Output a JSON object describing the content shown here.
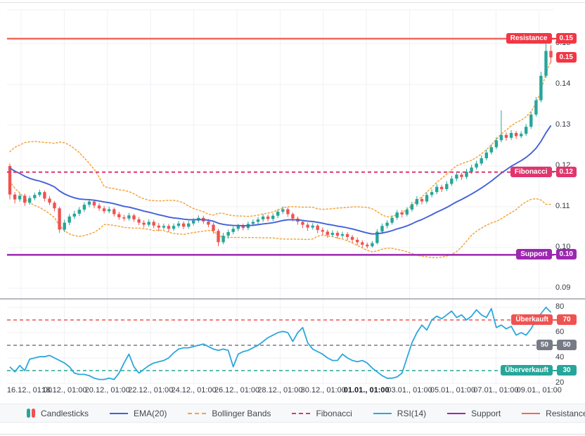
{
  "widget": {
    "type": "candlestick-price-chart-with-rsi"
  },
  "chart_data": {
    "type": "candlestick",
    "x_ticks": [
      "16.12., 01:00",
      "18.12., 01:00",
      "20.12., 01:00",
      "22.12., 01:00",
      "24.12., 01:00",
      "26.12., 01:00",
      "28.12., 01:00",
      "30.12., 01:00",
      "01.01., 01:00",
      "03.01., 01:00",
      "05.01., 01:00",
      "07.01., 01:00",
      "09.01., 01:00"
    ],
    "x_bold_tick": "01.01., 01:00",
    "price_axis": {
      "labels": [
        "0.15",
        "0.14",
        "0.13",
        "0.12",
        "0.11",
        "0.10",
        "0.09"
      ],
      "values": [
        0.15,
        0.14,
        0.13,
        0.12,
        0.11,
        0.1,
        0.09
      ]
    },
    "rsi_axis": {
      "labels": [
        "80",
        "60",
        "40",
        "20"
      ],
      "values": [
        80,
        60,
        40,
        20
      ]
    },
    "candles": [
      [
        0.12,
        0.1206,
        0.1118,
        0.113
      ],
      [
        0.113,
        0.1136,
        0.1108,
        0.1118
      ],
      [
        0.1118,
        0.1133,
        0.1112,
        0.1127
      ],
      [
        0.1127,
        0.1132,
        0.1102,
        0.111
      ],
      [
        0.111,
        0.1127,
        0.1105,
        0.1121
      ],
      [
        0.1121,
        0.1135,
        0.1116,
        0.1129
      ],
      [
        0.1129,
        0.1142,
        0.1124,
        0.1136
      ],
      [
        0.1136,
        0.114,
        0.1113,
        0.112
      ],
      [
        0.112,
        0.1126,
        0.1104,
        0.111
      ],
      [
        0.111,
        0.1114,
        0.1089,
        0.1096
      ],
      [
        0.1096,
        0.11,
        0.1036,
        0.1044
      ],
      [
        0.1044,
        0.1068,
        0.1038,
        0.1061
      ],
      [
        0.1061,
        0.1082,
        0.1055,
        0.1076
      ],
      [
        0.1076,
        0.109,
        0.107,
        0.1083
      ],
      [
        0.1083,
        0.1099,
        0.1077,
        0.1093
      ],
      [
        0.1093,
        0.1111,
        0.1087,
        0.1105
      ],
      [
        0.1105,
        0.1119,
        0.1099,
        0.1113
      ],
      [
        0.1113,
        0.1118,
        0.1096,
        0.1103
      ],
      [
        0.1103,
        0.1109,
        0.109,
        0.1096
      ],
      [
        0.1096,
        0.1102,
        0.1083,
        0.1089
      ],
      [
        0.1089,
        0.11,
        0.1084,
        0.1094
      ],
      [
        0.1094,
        0.1098,
        0.1076,
        0.1082
      ],
      [
        0.1082,
        0.1088,
        0.1068,
        0.1074
      ],
      [
        0.1074,
        0.108,
        0.1065,
        0.1071
      ],
      [
        0.1071,
        0.1085,
        0.1066,
        0.1079
      ],
      [
        0.1079,
        0.1083,
        0.1063,
        0.1069
      ],
      [
        0.1069,
        0.1075,
        0.1055,
        0.1061
      ],
      [
        0.1061,
        0.1067,
        0.1049,
        0.1056
      ],
      [
        0.1056,
        0.1069,
        0.1051,
        0.1063
      ],
      [
        0.1063,
        0.1068,
        0.1047,
        0.1054
      ],
      [
        0.1054,
        0.106,
        0.104,
        0.1049
      ],
      [
        0.1049,
        0.1059,
        0.1044,
        0.1053
      ],
      [
        0.1053,
        0.1058,
        0.1038,
        0.1046
      ],
      [
        0.1046,
        0.1059,
        0.1041,
        0.1053
      ],
      [
        0.1053,
        0.1065,
        0.1048,
        0.1059
      ],
      [
        0.1059,
        0.1064,
        0.1045,
        0.1051
      ],
      [
        0.1051,
        0.1066,
        0.1046,
        0.1059
      ],
      [
        0.1059,
        0.1072,
        0.1054,
        0.1066
      ],
      [
        0.1066,
        0.1079,
        0.1061,
        0.1073
      ],
      [
        0.1073,
        0.1078,
        0.1058,
        0.1064
      ],
      [
        0.1064,
        0.107,
        0.105,
        0.1056
      ],
      [
        0.1056,
        0.1061,
        0.1034,
        0.1041
      ],
      [
        0.1041,
        0.1046,
        0.1003,
        0.1013
      ],
      [
        0.1013,
        0.1036,
        0.1008,
        0.1029
      ],
      [
        0.1029,
        0.1044,
        0.1022,
        0.1038
      ],
      [
        0.1038,
        0.1052,
        0.1032,
        0.1046
      ],
      [
        0.1046,
        0.1058,
        0.104,
        0.1053
      ],
      [
        0.1053,
        0.1059,
        0.1042,
        0.1048
      ],
      [
        0.1048,
        0.1064,
        0.1043,
        0.1058
      ],
      [
        0.1058,
        0.1069,
        0.1052,
        0.1063
      ],
      [
        0.1063,
        0.1075,
        0.1057,
        0.1069
      ],
      [
        0.1069,
        0.1082,
        0.1063,
        0.1076
      ],
      [
        0.1076,
        0.1081,
        0.1064,
        0.107
      ],
      [
        0.107,
        0.1084,
        0.1065,
        0.1078
      ],
      [
        0.1078,
        0.1094,
        0.1072,
        0.1088
      ],
      [
        0.1088,
        0.1101,
        0.1082,
        0.1094
      ],
      [
        0.1094,
        0.1098,
        0.1075,
        0.1082
      ],
      [
        0.1082,
        0.1086,
        0.1064,
        0.1071
      ],
      [
        0.1071,
        0.1076,
        0.1056,
        0.1063
      ],
      [
        0.1063,
        0.1068,
        0.1048,
        0.1056
      ],
      [
        0.1056,
        0.1061,
        0.1041,
        0.1049
      ],
      [
        0.1049,
        0.106,
        0.1044,
        0.1054
      ],
      [
        0.1054,
        0.1058,
        0.1035,
        0.1043
      ],
      [
        0.1043,
        0.1049,
        0.1031,
        0.1039
      ],
      [
        0.1039,
        0.1044,
        0.1024,
        0.1031
      ],
      [
        0.1031,
        0.1042,
        0.1026,
        0.1036
      ],
      [
        0.1036,
        0.1041,
        0.1022,
        0.1029
      ],
      [
        0.1029,
        0.1039,
        0.1023,
        0.1033
      ],
      [
        0.1033,
        0.1038,
        0.1018,
        0.1026
      ],
      [
        0.1026,
        0.1031,
        0.1012,
        0.1019
      ],
      [
        0.1019,
        0.1025,
        0.1006,
        0.1013
      ],
      [
        0.1013,
        0.1018,
        0.1,
        0.1007
      ],
      [
        0.1007,
        0.1012,
        0.0998,
        0.1003
      ],
      [
        0.1003,
        0.1016,
        0.1,
        0.1011
      ],
      [
        0.1011,
        0.1045,
        0.1008,
        0.1039
      ],
      [
        0.1039,
        0.1059,
        0.1033,
        0.1053
      ],
      [
        0.1053,
        0.1067,
        0.1047,
        0.1061
      ],
      [
        0.1061,
        0.1079,
        0.1056,
        0.1073
      ],
      [
        0.1073,
        0.1092,
        0.1068,
        0.1086
      ],
      [
        0.1086,
        0.1092,
        0.1074,
        0.1081
      ],
      [
        0.1081,
        0.1099,
        0.1076,
        0.1093
      ],
      [
        0.1093,
        0.1112,
        0.1088,
        0.1106
      ],
      [
        0.1106,
        0.1126,
        0.1101,
        0.1119
      ],
      [
        0.1119,
        0.1124,
        0.1106,
        0.1113
      ],
      [
        0.1113,
        0.1135,
        0.1108,
        0.1129
      ],
      [
        0.1129,
        0.1143,
        0.1123,
        0.1136
      ],
      [
        0.1136,
        0.1156,
        0.1131,
        0.1149
      ],
      [
        0.1149,
        0.1154,
        0.1136,
        0.1143
      ],
      [
        0.1143,
        0.1163,
        0.1138,
        0.1156
      ],
      [
        0.1156,
        0.1176,
        0.1151,
        0.1169
      ],
      [
        0.1169,
        0.1186,
        0.1163,
        0.1179
      ],
      [
        0.1179,
        0.1184,
        0.1166,
        0.1173
      ],
      [
        0.1173,
        0.1193,
        0.1168,
        0.1186
      ],
      [
        0.1186,
        0.1203,
        0.1181,
        0.1196
      ],
      [
        0.1196,
        0.1213,
        0.1191,
        0.1206
      ],
      [
        0.1206,
        0.1226,
        0.1201,
        0.1219
      ],
      [
        0.1219,
        0.124,
        0.1214,
        0.1233
      ],
      [
        0.1233,
        0.1253,
        0.1228,
        0.1246
      ],
      [
        0.1246,
        0.127,
        0.1241,
        0.1263
      ],
      [
        0.1263,
        0.1336,
        0.1258,
        0.1276
      ],
      [
        0.1276,
        0.1282,
        0.1262,
        0.1269
      ],
      [
        0.1269,
        0.1288,
        0.1264,
        0.1281
      ],
      [
        0.1281,
        0.1286,
        0.1266,
        0.1273
      ],
      [
        0.1273,
        0.1285,
        0.1268,
        0.1279
      ],
      [
        0.1279,
        0.1303,
        0.1274,
        0.1296
      ],
      [
        0.1296,
        0.1333,
        0.1291,
        0.1326
      ],
      [
        0.1326,
        0.1369,
        0.1321,
        0.1361
      ],
      [
        0.1361,
        0.1431,
        0.1356,
        0.1421
      ],
      [
        0.1421,
        0.15,
        0.1416,
        0.1482
      ],
      [
        0.1482,
        0.1496,
        0.1452,
        0.1466
      ]
    ],
    "indicator_warmup_closes": [
      0.1182,
      0.1188,
      0.1184,
      0.1192,
      0.1196,
      0.119,
      0.1198,
      0.1204,
      0.1199,
      0.1206,
      0.121,
      0.1203,
      0.1208,
      0.1214,
      0.1209,
      0.1216,
      0.1212,
      0.1206,
      0.121,
      0.1204
    ],
    "indicators": {
      "ema_period": 20,
      "bollinger_period": 20,
      "bollinger_stddev": 2,
      "rsi_period": 14,
      "rsi_values": [
        33,
        29,
        34,
        30,
        39,
        40,
        41,
        41,
        42,
        40,
        38,
        36,
        33,
        28,
        27,
        27,
        26,
        24,
        23,
        23,
        24,
        23,
        28,
        36,
        43,
        33,
        28,
        31,
        34,
        36,
        37,
        38,
        40,
        44,
        47,
        48,
        48,
        49,
        50,
        51,
        49,
        47,
        46,
        47,
        46,
        33,
        43,
        45,
        46,
        48,
        50,
        53,
        56,
        58,
        60,
        61,
        60,
        53,
        60,
        64,
        52,
        47,
        45,
        43,
        40,
        38,
        38,
        43,
        40,
        38,
        37,
        38,
        36,
        32,
        29,
        26,
        24,
        24,
        25,
        28,
        40,
        52,
        60,
        66,
        62,
        70,
        73,
        71,
        74,
        77,
        72,
        74,
        70,
        73,
        78,
        74,
        72,
        79,
        64,
        66,
        63,
        65,
        58,
        60,
        58,
        63,
        70,
        75,
        80,
        76
      ]
    },
    "annotations": [
      {
        "key": "resistance",
        "panel": "price",
        "value": 0.1512,
        "label": "Resistance",
        "display": "0.15",
        "color": "#f23645",
        "line_color": "#f0685c",
        "line_style": "solid",
        "line_width": 2.5
      },
      {
        "key": "fibonacci",
        "panel": "price",
        "value": 0.1185,
        "label": "Fibonacci",
        "display": "0.12",
        "color": "#e0366e",
        "line_color": "#e0366e",
        "line_style": "dashed",
        "line_width": 2
      },
      {
        "key": "support",
        "panel": "price",
        "value": 0.0982,
        "label": "Support",
        "display": "0.10",
        "color": "#9c27b0",
        "line_color": "#9c27b0",
        "line_style": "solid",
        "line_width": 2.5
      },
      {
        "key": "last-price",
        "panel": "price",
        "value": 0.1466,
        "label": "",
        "display": "0.15",
        "color": "#f23645",
        "line_style": "none"
      },
      {
        "key": "overbought",
        "panel": "rsi",
        "value": 70,
        "label": "Überkauft",
        "display": "70",
        "color": "#ef5350",
        "line_color": "#ef5350",
        "line_style": "dashed",
        "line_width": 1.6
      },
      {
        "key": "midline",
        "panel": "rsi",
        "value": 50,
        "label": "50",
        "display": "50",
        "color": "#787b86",
        "line_color": "#787b86",
        "line_style": "dashed",
        "line_width": 1.6
      },
      {
        "key": "oversold",
        "panel": "rsi",
        "value": 30,
        "label": "Überverkauft",
        "display": "30",
        "color": "#26a69a",
        "line_color": "#26a69a",
        "line_style": "dashed",
        "line_width": 1.6
      }
    ],
    "colors": {
      "up": "#26a69a",
      "down": "#ef5350",
      "ema": "#4161d8",
      "bollinger": "#f5a33b",
      "rsi": "#2ba7dc",
      "grid": "#f0f1f5",
      "separator": "#b7b9c0",
      "axis_text": "#363a45",
      "legend_bg": "#f7f8fa"
    }
  },
  "legend": {
    "items": [
      {
        "label": "Candlesticks",
        "marker": "candles"
      },
      {
        "label": "EMA(20)",
        "marker": "line",
        "color": "#4161d8"
      },
      {
        "label": "Bollinger Bands",
        "marker": "dash",
        "color": "#f5a33b"
      },
      {
        "label": "Fibonacci",
        "marker": "dash",
        "color": "#e0366e"
      },
      {
        "label": "RSI(14)",
        "marker": "line",
        "color": "#2ba7dc"
      },
      {
        "label": "Support",
        "marker": "line",
        "color": "#9c27b0"
      },
      {
        "label": "Resistance",
        "marker": "line",
        "color": "#f0685c"
      }
    ]
  }
}
